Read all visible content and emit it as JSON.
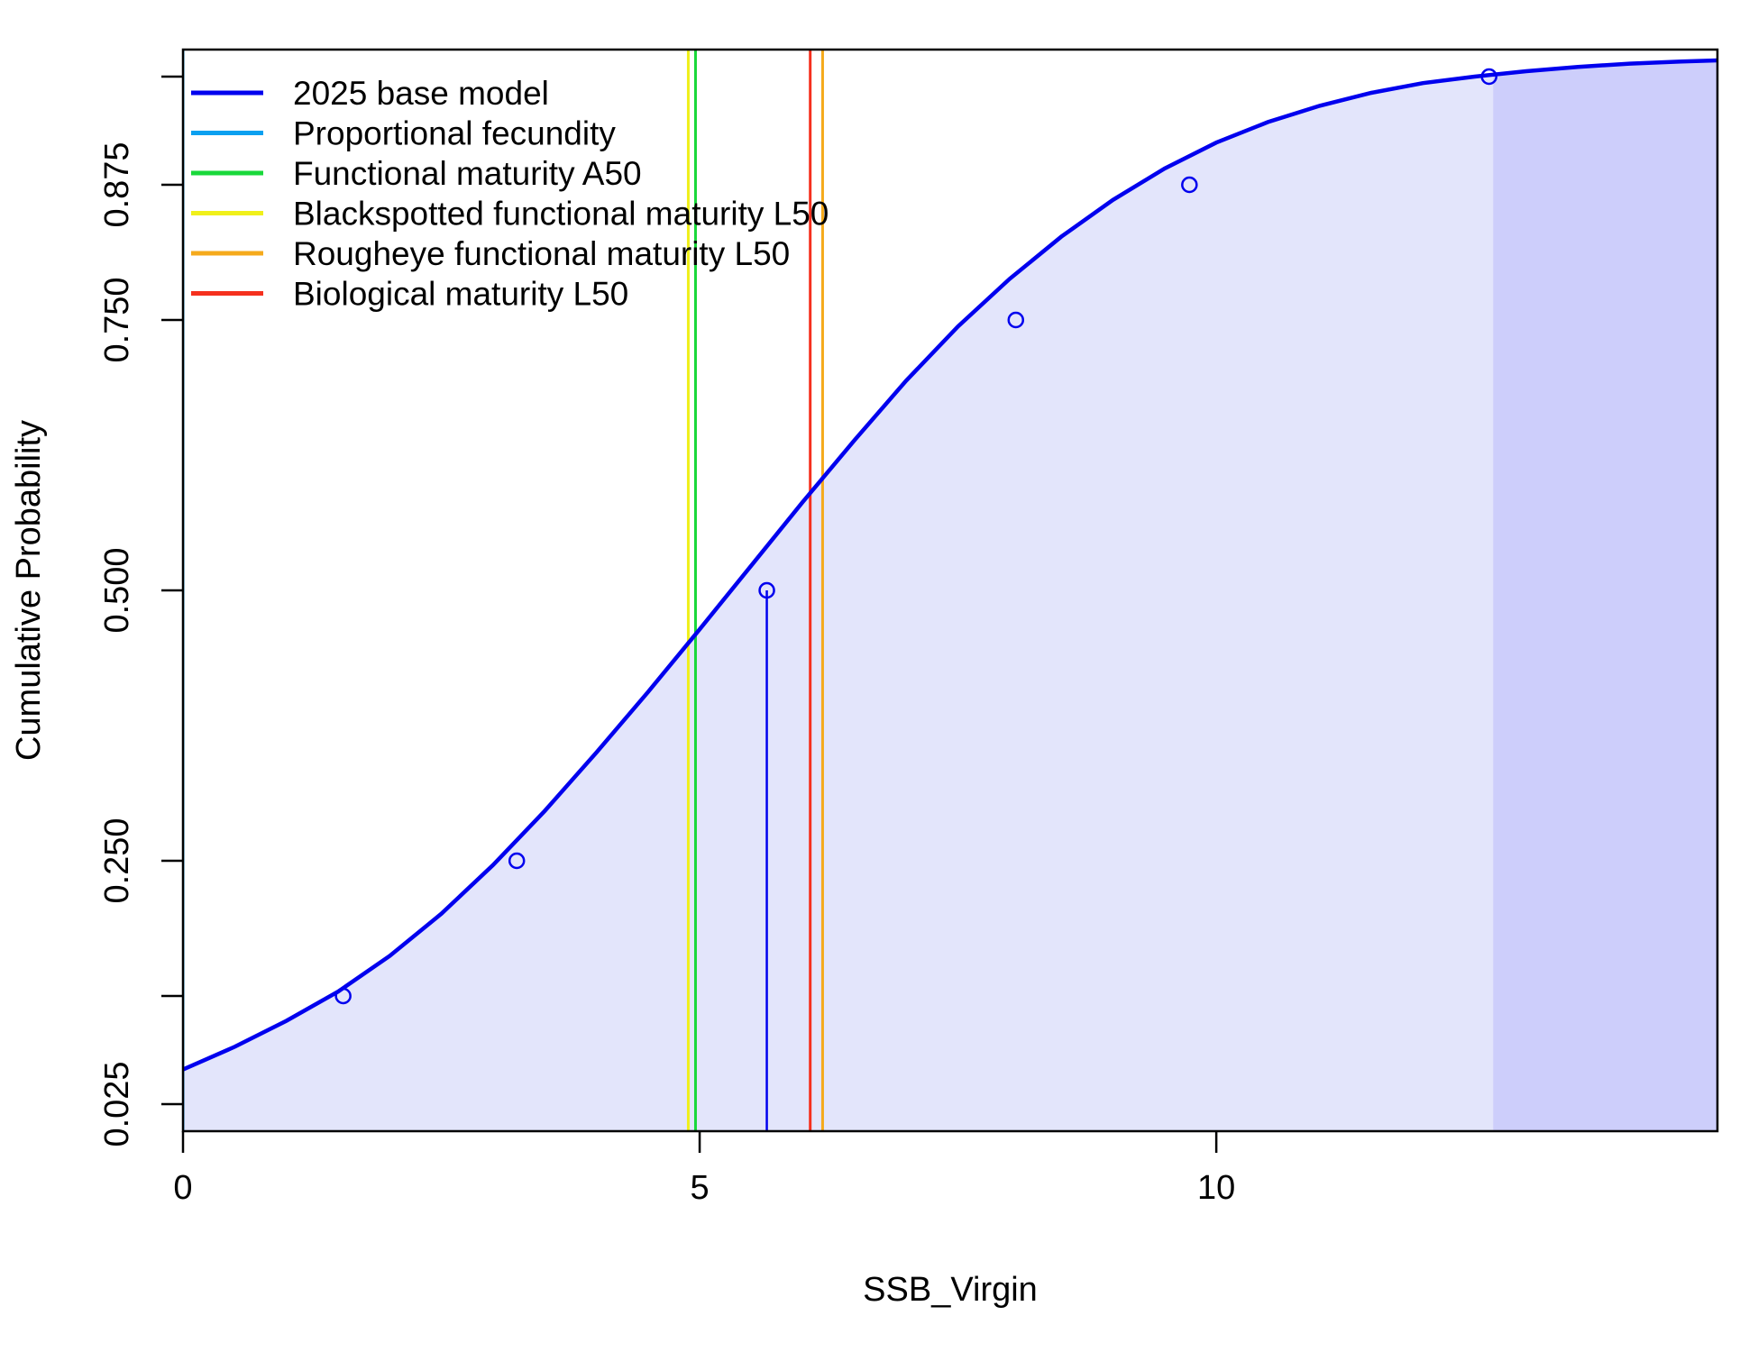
{
  "chart_data": {
    "type": "line",
    "title": "",
    "xlabel": "SSB_Virgin",
    "ylabel": "Cumulative Probability",
    "xlim": [
      0,
      14.85
    ],
    "ylim": [
      0.0,
      1.0
    ],
    "x_ticks": [
      0,
      5,
      10
    ],
    "x_tick_labels": [
      "0",
      "5",
      "10"
    ],
    "y_ticks": [
      0.025,
      0.125,
      0.25,
      0.5,
      0.75,
      0.875,
      0.975
    ],
    "y_tick_labels": [
      "0.025",
      "",
      "0.250",
      "0.500",
      "0.750",
      "0.875",
      ""
    ],
    "grid": false,
    "legend_position": "top-left",
    "series": [
      {
        "name": "2025 base model",
        "color": "#0000ee",
        "curve": {
          "x": [
            0,
            0.5,
            1,
            1.5,
            2,
            2.5,
            3,
            3.5,
            4,
            4.5,
            5,
            5.5,
            6,
            6.5,
            7,
            7.5,
            8,
            8.5,
            9,
            9.5,
            10,
            10.5,
            11,
            11.5,
            12,
            12.5,
            13,
            13.5,
            14,
            14.5,
            14.85
          ],
          "y": [
            0.057,
            0.078,
            0.102,
            0.129,
            0.162,
            0.201,
            0.246,
            0.296,
            0.35,
            0.406,
            0.464,
            0.523,
            0.582,
            0.639,
            0.694,
            0.744,
            0.788,
            0.827,
            0.861,
            0.89,
            0.914,
            0.933,
            0.948,
            0.96,
            0.969,
            0.975,
            0.98,
            0.984,
            0.987,
            0.989,
            0.99
          ]
        },
        "quantile_points": {
          "x": [
            1.55,
            3.23,
            5.65,
            8.06,
            9.74,
            12.64
          ],
          "y": [
            0.125,
            0.25,
            0.5,
            0.75,
            0.875,
            0.975
          ]
        },
        "median": 5.65,
        "upper_tail_start": 12.68
      }
    ],
    "reference_lines": [
      {
        "name": "Proportional fecundity",
        "color": "#0aa0f0",
        "x": 0.0
      },
      {
        "name": "Functional maturity A50",
        "color": "#19d83a",
        "x": 4.96
      },
      {
        "name": "Blackspotted functional maturity L50",
        "color": "#f0f01a",
        "x": 4.89
      },
      {
        "name": "Rougheye functional maturity L50",
        "color": "#f5aa1c",
        "x": 6.19
      },
      {
        "name": "Biological maturity L50",
        "color": "#f5301e",
        "x": 6.07
      }
    ],
    "legend": [
      {
        "label": "2025 base model",
        "color": "#0000ee"
      },
      {
        "label": "Proportional fecundity",
        "color": "#0aa0f0"
      },
      {
        "label": "Functional maturity A50",
        "color": "#19d83a"
      },
      {
        "label": "Blackspotted functional maturity L50",
        "color": "#f0f01a"
      },
      {
        "label": "Rougheye functional maturity L50",
        "color": "#f5aa1c"
      },
      {
        "label": "Biological maturity L50",
        "color": "#f5301e"
      }
    ],
    "colors": {
      "fill_body": "#e3e5fb",
      "fill_tail": "#cdcefb"
    }
  }
}
